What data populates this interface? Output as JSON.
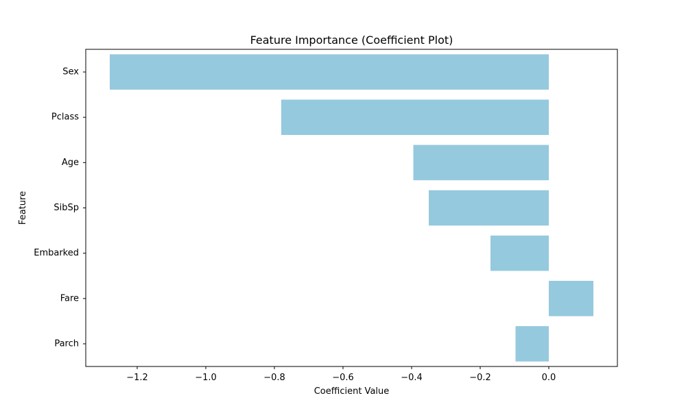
{
  "chart_data": {
    "type": "bar",
    "orientation": "horizontal",
    "title": "Feature Importance (Coefficient Plot)",
    "xlabel": "Coefficient Value",
    "ylabel": "Feature",
    "categories": [
      "Sex",
      "Pclass",
      "Age",
      "SibSp",
      "Embarked",
      "Fare",
      "Parch"
    ],
    "values": [
      -1.28,
      -0.78,
      -0.395,
      -0.35,
      -0.17,
      0.13,
      -0.097
    ],
    "xlim": [
      -1.35,
      0.2
    ],
    "xticks": [
      -1.2,
      -1.0,
      -0.8,
      -0.6,
      -0.4,
      -0.2,
      0.0
    ],
    "xtick_labels": [
      "−1.2",
      "−1.0",
      "−0.8",
      "−0.6",
      "−0.4",
      "−0.2",
      "0.0"
    ],
    "bar_color": "#95c9de",
    "grid": false,
    "legend": "none"
  }
}
